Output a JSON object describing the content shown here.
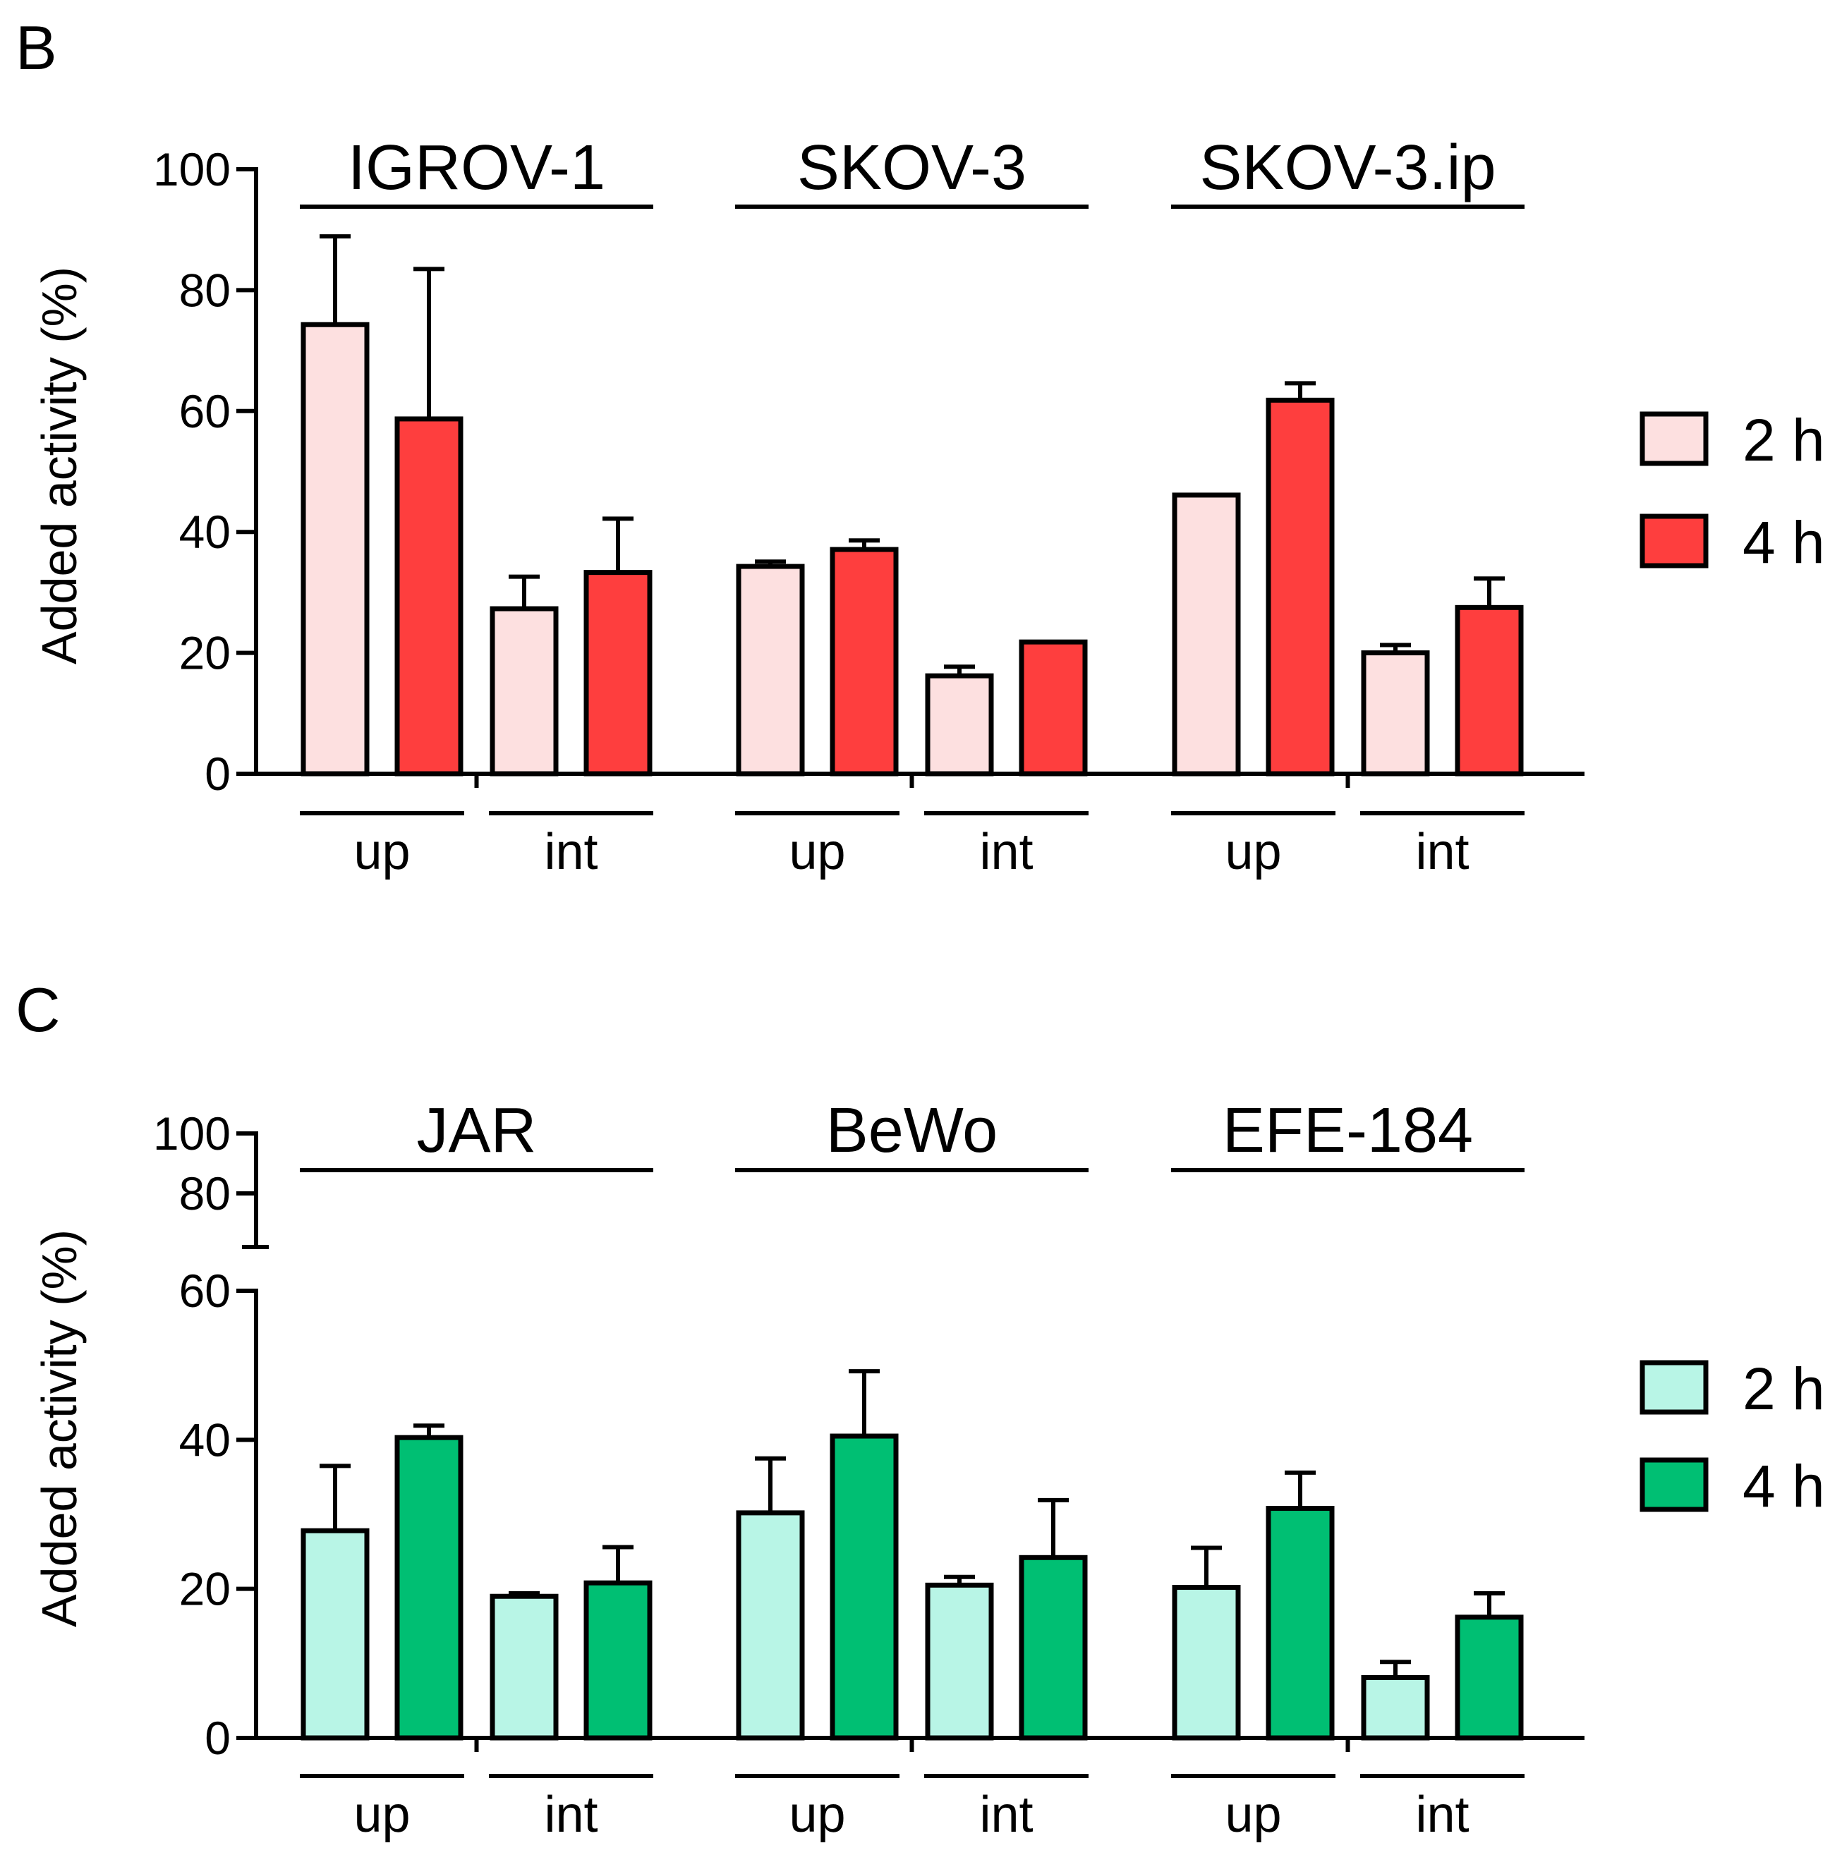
{
  "chart_data": [
    {
      "panel": "B",
      "type": "bar",
      "ylabel": "Added activity (%)",
      "ylim": [
        0,
        100
      ],
      "yticks": [
        0,
        20,
        40,
        60,
        80,
        100
      ],
      "axis_break": false,
      "legend": {
        "position": "right",
        "entries": [
          "2 h",
          "4 h"
        ]
      },
      "colors": {
        "2 h": "#fde0e0",
        "4 h": "#fe3e3e"
      },
      "groups": [
        {
          "name": "IGROV-1",
          "subgroups": [
            {
              "label": "up",
              "series": [
                {
                  "name": "2 h",
                  "value": 74.3,
                  "error": 14.6
                },
                {
                  "name": "4 h",
                  "value": 58.7,
                  "error": 24.8
                }
              ]
            },
            {
              "label": "int",
              "series": [
                {
                  "name": "2 h",
                  "value": 27.3,
                  "error": 5.3
                },
                {
                  "name": "4 h",
                  "value": 33.3,
                  "error": 8.9
                }
              ]
            }
          ]
        },
        {
          "name": "SKOV-3",
          "subgroups": [
            {
              "label": "up",
              "series": [
                {
                  "name": "2 h",
                  "value": 34.3,
                  "error": 0.8
                },
                {
                  "name": "4 h",
                  "value": 37.1,
                  "error": 1.5
                }
              ]
            },
            {
              "label": "int",
              "series": [
                {
                  "name": "2 h",
                  "value": 16.2,
                  "error": 1.5
                },
                {
                  "name": "4 h",
                  "value": 21.8,
                  "error": 0
                }
              ]
            }
          ]
        },
        {
          "name": "SKOV-3.ip",
          "subgroups": [
            {
              "label": "up",
              "series": [
                {
                  "name": "2 h",
                  "value": 46.1,
                  "error": 0
                },
                {
                  "name": "4 h",
                  "value": 61.8,
                  "error": 2.8
                }
              ]
            },
            {
              "label": "int",
              "series": [
                {
                  "name": "2 h",
                  "value": 20.0,
                  "error": 1.3
                },
                {
                  "name": "4 h",
                  "value": 27.5,
                  "error": 4.8
                }
              ]
            }
          ]
        }
      ]
    },
    {
      "panel": "C",
      "type": "bar",
      "ylabel": "Added activity (%)",
      "ylim": [
        0,
        100
      ],
      "yticks": [
        0,
        20,
        40,
        60,
        80,
        100
      ],
      "axis_break": true,
      "break_range": [
        60,
        80
      ],
      "legend": {
        "position": "right",
        "entries": [
          "2 h",
          "4 h"
        ]
      },
      "colors": {
        "2 h": "#b8f5e6",
        "4 h": "#00bf73"
      },
      "groups": [
        {
          "name": "JAR",
          "subgroups": [
            {
              "label": "up",
              "series": [
                {
                  "name": "2 h",
                  "value": 27.8,
                  "error": 8.7
                },
                {
                  "name": "4 h",
                  "value": 40.3,
                  "error": 1.6
                }
              ]
            },
            {
              "label": "int",
              "series": [
                {
                  "name": "2 h",
                  "value": 19.0,
                  "error": 0.4
                },
                {
                  "name": "4 h",
                  "value": 20.8,
                  "error": 4.8
                }
              ]
            }
          ]
        },
        {
          "name": "BeWo",
          "subgroups": [
            {
              "label": "up",
              "series": [
                {
                  "name": "2 h",
                  "value": 30.2,
                  "error": 7.3
                },
                {
                  "name": "4 h",
                  "value": 40.5,
                  "error": 8.7
                }
              ]
            },
            {
              "label": "int",
              "series": [
                {
                  "name": "2 h",
                  "value": 20.5,
                  "error": 1.1
                },
                {
                  "name": "4 h",
                  "value": 24.2,
                  "error": 7.7
                }
              ]
            }
          ]
        },
        {
          "name": "EFE-184",
          "subgroups": [
            {
              "label": "up",
              "series": [
                {
                  "name": "2 h",
                  "value": 20.2,
                  "error": 5.3
                },
                {
                  "name": "4 h",
                  "value": 30.8,
                  "error": 4.8
                }
              ]
            },
            {
              "label": "int",
              "series": [
                {
                  "name": "2 h",
                  "value": 8.1,
                  "error": 2.1
                },
                {
                  "name": "4 h",
                  "value": 16.2,
                  "error": 3.2
                }
              ]
            }
          ]
        }
      ]
    }
  ]
}
